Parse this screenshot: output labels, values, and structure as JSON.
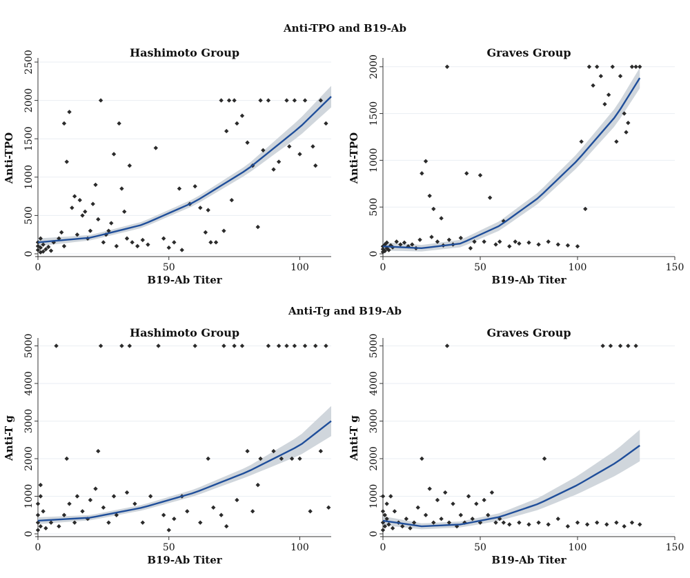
{
  "figure": {
    "row1_title": "Anti-TPO and B19-Ab",
    "row2_title": "Anti-Tg and B19-Ab"
  },
  "style": {
    "fit_color": "#1f4e9a",
    "ci_color": "#c8cfd6",
    "point_color": "#2b2b2b",
    "grid_color": "#eaeef3"
  },
  "chart_data": [
    {
      "type": "scatter",
      "title": "Hashimoto Group",
      "xlabel": "B19-Ab Titer",
      "ylabel": "Anti-TPO",
      "xlim": [
        0,
        112
      ],
      "ylim": [
        0,
        2500
      ],
      "xticks": [
        0,
        50,
        100
      ],
      "yticks": [
        0,
        500,
        1000,
        1500,
        2000,
        2500
      ],
      "fit": {
        "x": [
          0,
          20,
          40,
          60,
          80,
          100,
          112
        ],
        "y": [
          150,
          210,
          380,
          680,
          1100,
          1650,
          2050
        ]
      },
      "ci_halfwidth": {
        "x": [
          0,
          20,
          40,
          60,
          80,
          100,
          112
        ],
        "y": [
          50,
          35,
          40,
          45,
          60,
          110,
          140
        ]
      },
      "points": [
        [
          0,
          50
        ],
        [
          0,
          100
        ],
        [
          0,
          150
        ],
        [
          1,
          20
        ],
        [
          1,
          80
        ],
        [
          1,
          200
        ],
        [
          2,
          30
        ],
        [
          2,
          120
        ],
        [
          3,
          60
        ],
        [
          4,
          90
        ],
        [
          5,
          40
        ],
        [
          6,
          150
        ],
        [
          8,
          200
        ],
        [
          9,
          280
        ],
        [
          10,
          100
        ],
        [
          11,
          1200
        ],
        [
          12,
          1850
        ],
        [
          10,
          1700
        ],
        [
          13,
          600
        ],
        [
          14,
          750
        ],
        [
          15,
          250
        ],
        [
          16,
          700
        ],
        [
          17,
          500
        ],
        [
          18,
          550
        ],
        [
          19,
          200
        ],
        [
          20,
          300
        ],
        [
          21,
          650
        ],
        [
          22,
          900
        ],
        [
          23,
          450
        ],
        [
          24,
          2000
        ],
        [
          25,
          150
        ],
        [
          26,
          250
        ],
        [
          27,
          300
        ],
        [
          28,
          400
        ],
        [
          29,
          1300
        ],
        [
          30,
          100
        ],
        [
          31,
          1700
        ],
        [
          32,
          850
        ],
        [
          33,
          550
        ],
        [
          34,
          200
        ],
        [
          35,
          1150
        ],
        [
          36,
          150
        ],
        [
          38,
          100
        ],
        [
          40,
          180
        ],
        [
          42,
          120
        ],
        [
          45,
          1380
        ],
        [
          48,
          200
        ],
        [
          50,
          80
        ],
        [
          52,
          150
        ],
        [
          54,
          850
        ],
        [
          55,
          50
        ],
        [
          58,
          650
        ],
        [
          60,
          880
        ],
        [
          62,
          600
        ],
        [
          64,
          280
        ],
        [
          65,
          570
        ],
        [
          66,
          150
        ],
        [
          68,
          150
        ],
        [
          70,
          2000
        ],
        [
          71,
          300
        ],
        [
          72,
          1600
        ],
        [
          73,
          2000
        ],
        [
          74,
          700
        ],
        [
          75,
          2000
        ],
        [
          76,
          1700
        ],
        [
          78,
          1800
        ],
        [
          80,
          1450
        ],
        [
          82,
          1150
        ],
        [
          84,
          350
        ],
        [
          85,
          2000
        ],
        [
          86,
          1350
        ],
        [
          88,
          2000
        ],
        [
          90,
          1100
        ],
        [
          92,
          1200
        ],
        [
          95,
          2000
        ],
        [
          96,
          1400
        ],
        [
          98,
          2000
        ],
        [
          100,
          1300
        ],
        [
          102,
          2000
        ],
        [
          105,
          1400
        ],
        [
          106,
          1150
        ],
        [
          108,
          2000
        ],
        [
          110,
          1700
        ]
      ]
    },
    {
      "type": "scatter",
      "title": "Graves Group",
      "xlabel": "B19-Ab Titer",
      "ylabel": "Anti-TPO",
      "xlim": [
        0,
        150
      ],
      "ylim": [
        0,
        2050
      ],
      "xticks": [
        0,
        50,
        100,
        150
      ],
      "yticks": [
        0,
        500,
        1000,
        1500,
        2000
      ],
      "fit": {
        "x": [
          0,
          20,
          40,
          60,
          80,
          100,
          120,
          132
        ],
        "y": [
          80,
          60,
          110,
          300,
          600,
          1000,
          1480,
          1880
        ]
      },
      "ci_halfwidth": {
        "x": [
          0,
          20,
          40,
          60,
          80,
          100,
          120,
          132
        ],
        "y": [
          45,
          35,
          40,
          50,
          60,
          75,
          95,
          110
        ]
      },
      "points": [
        [
          0,
          20
        ],
        [
          0,
          50
        ],
        [
          0,
          80
        ],
        [
          1,
          30
        ],
        [
          1,
          100
        ],
        [
          2,
          60
        ],
        [
          2,
          120
        ],
        [
          3,
          40
        ],
        [
          4,
          90
        ],
        [
          5,
          70
        ],
        [
          7,
          130
        ],
        [
          9,
          100
        ],
        [
          11,
          120
        ],
        [
          13,
          80
        ],
        [
          15,
          100
        ],
        [
          17,
          60
        ],
        [
          19,
          150
        ],
        [
          20,
          860
        ],
        [
          22,
          990
        ],
        [
          24,
          620
        ],
        [
          25,
          180
        ],
        [
          26,
          480
        ],
        [
          28,
          130
        ],
        [
          30,
          380
        ],
        [
          31,
          90
        ],
        [
          33,
          2000
        ],
        [
          34,
          150
        ],
        [
          36,
          100
        ],
        [
          40,
          170
        ],
        [
          43,
          860
        ],
        [
          45,
          60
        ],
        [
          47,
          130
        ],
        [
          50,
          840
        ],
        [
          52,
          130
        ],
        [
          55,
          600
        ],
        [
          58,
          100
        ],
        [
          60,
          130
        ],
        [
          62,
          350
        ],
        [
          65,
          80
        ],
        [
          68,
          130
        ],
        [
          70,
          110
        ],
        [
          75,
          120
        ],
        [
          80,
          100
        ],
        [
          85,
          130
        ],
        [
          90,
          100
        ],
        [
          95,
          90
        ],
        [
          100,
          80
        ],
        [
          102,
          1200
        ],
        [
          104,
          480
        ],
        [
          106,
          2000
        ],
        [
          108,
          1800
        ],
        [
          110,
          2000
        ],
        [
          112,
          1900
        ],
        [
          114,
          1600
        ],
        [
          116,
          1700
        ],
        [
          118,
          2000
        ],
        [
          120,
          1200
        ],
        [
          122,
          1900
        ],
        [
          124,
          1500
        ],
        [
          125,
          1300
        ],
        [
          126,
          1400
        ],
        [
          128,
          2000
        ],
        [
          130,
          2000
        ],
        [
          132,
          2000
        ]
      ]
    },
    {
      "type": "scatter",
      "title": "Hashimoto Group",
      "xlabel": "B19-Ab Titer",
      "ylabel": "Anti-T g",
      "xlim": [
        0,
        112
      ],
      "ylim": [
        0,
        5100
      ],
      "xticks": [
        0,
        50,
        100
      ],
      "yticks": [
        0,
        1000,
        2000,
        3000,
        4000,
        5000
      ],
      "fit": {
        "x": [
          0,
          20,
          40,
          60,
          80,
          100,
          112
        ],
        "y": [
          350,
          430,
          700,
          1100,
          1650,
          2350,
          3000
        ]
      },
      "ci_halfwidth": {
        "x": [
          0,
          20,
          40,
          60,
          80,
          100,
          112
        ],
        "y": [
          90,
          70,
          75,
          90,
          130,
          260,
          400
        ]
      },
      "points": [
        [
          0,
          100
        ],
        [
          0,
          300
        ],
        [
          0,
          500
        ],
        [
          0,
          800
        ],
        [
          1,
          200
        ],
        [
          1,
          1000
        ],
        [
          1,
          1300
        ],
        [
          2,
          600
        ],
        [
          3,
          150
        ],
        [
          5,
          300
        ],
        [
          7,
          5000
        ],
        [
          8,
          200
        ],
        [
          10,
          500
        ],
        [
          11,
          2000
        ],
        [
          12,
          800
        ],
        [
          14,
          300
        ],
        [
          15,
          1000
        ],
        [
          17,
          600
        ],
        [
          19,
          400
        ],
        [
          20,
          900
        ],
        [
          22,
          1200
        ],
        [
          23,
          2200
        ],
        [
          24,
          5000
        ],
        [
          25,
          700
        ],
        [
          27,
          300
        ],
        [
          29,
          1000
        ],
        [
          30,
          500
        ],
        [
          32,
          5000
        ],
        [
          34,
          1100
        ],
        [
          35,
          5000
        ],
        [
          37,
          800
        ],
        [
          40,
          300
        ],
        [
          43,
          1000
        ],
        [
          46,
          5000
        ],
        [
          48,
          500
        ],
        [
          50,
          100
        ],
        [
          52,
          400
        ],
        [
          55,
          1000
        ],
        [
          57,
          600
        ],
        [
          60,
          5000
        ],
        [
          62,
          300
        ],
        [
          65,
          2000
        ],
        [
          67,
          700
        ],
        [
          70,
          500
        ],
        [
          71,
          5000
        ],
        [
          72,
          200
        ],
        [
          75,
          5000
        ],
        [
          76,
          900
        ],
        [
          78,
          5000
        ],
        [
          80,
          2200
        ],
        [
          82,
          600
        ],
        [
          84,
          1300
        ],
        [
          85,
          2000
        ],
        [
          88,
          5000
        ],
        [
          90,
          2200
        ],
        [
          92,
          5000
        ],
        [
          93,
          2000
        ],
        [
          95,
          5000
        ],
        [
          97,
          2000
        ],
        [
          98,
          5000
        ],
        [
          100,
          2000
        ],
        [
          102,
          5000
        ],
        [
          104,
          600
        ],
        [
          106,
          5000
        ],
        [
          108,
          2200
        ],
        [
          110,
          5000
        ],
        [
          111,
          700
        ]
      ]
    },
    {
      "type": "scatter",
      "title": "Graves Group",
      "xlabel": "B19-Ab Titer",
      "ylabel": "Anti-T g",
      "xlim": [
        0,
        150
      ],
      "ylim": [
        0,
        5100
      ],
      "xticks": [
        0,
        50,
        100,
        150
      ],
      "yticks": [
        0,
        1000,
        2000,
        3000,
        4000,
        5000
      ],
      "fit": {
        "x": [
          0,
          20,
          40,
          60,
          80,
          100,
          120,
          132
        ],
        "y": [
          350,
          200,
          250,
          450,
          800,
          1300,
          1900,
          2350
        ]
      },
      "ci_halfwidth": {
        "x": [
          0,
          20,
          40,
          60,
          80,
          100,
          120,
          132
        ],
        "y": [
          120,
          80,
          80,
          100,
          160,
          240,
          340,
          420
        ]
      },
      "points": [
        [
          0,
          100
        ],
        [
          0,
          300
        ],
        [
          0,
          600
        ],
        [
          0,
          1000
        ],
        [
          1,
          200
        ],
        [
          1,
          500
        ],
        [
          2,
          400
        ],
        [
          2,
          800
        ],
        [
          3,
          250
        ],
        [
          4,
          1000
        ],
        [
          5,
          150
        ],
        [
          6,
          600
        ],
        [
          8,
          300
        ],
        [
          10,
          200
        ],
        [
          12,
          400
        ],
        [
          14,
          150
        ],
        [
          16,
          300
        ],
        [
          18,
          700
        ],
        [
          20,
          2000
        ],
        [
          22,
          500
        ],
        [
          24,
          1200
        ],
        [
          26,
          300
        ],
        [
          28,
          900
        ],
        [
          30,
          400
        ],
        [
          32,
          1100
        ],
        [
          33,
          5000
        ],
        [
          34,
          300
        ],
        [
          36,
          800
        ],
        [
          38,
          200
        ],
        [
          40,
          500
        ],
        [
          42,
          300
        ],
        [
          44,
          1000
        ],
        [
          46,
          400
        ],
        [
          48,
          800
        ],
        [
          50,
          300
        ],
        [
          52,
          900
        ],
        [
          54,
          500
        ],
        [
          56,
          1100
        ],
        [
          58,
          300
        ],
        [
          60,
          400
        ],
        [
          62,
          300
        ],
        [
          65,
          250
        ],
        [
          70,
          300
        ],
        [
          75,
          250
        ],
        [
          80,
          300
        ],
        [
          83,
          2000
        ],
        [
          85,
          250
        ],
        [
          90,
          400
        ],
        [
          95,
          200
        ],
        [
          100,
          300
        ],
        [
          105,
          250
        ],
        [
          110,
          300
        ],
        [
          113,
          5000
        ],
        [
          115,
          250
        ],
        [
          117,
          5000
        ],
        [
          120,
          300
        ],
        [
          122,
          5000
        ],
        [
          124,
          200
        ],
        [
          126,
          5000
        ],
        [
          128,
          300
        ],
        [
          130,
          5000
        ],
        [
          132,
          250
        ]
      ]
    }
  ]
}
